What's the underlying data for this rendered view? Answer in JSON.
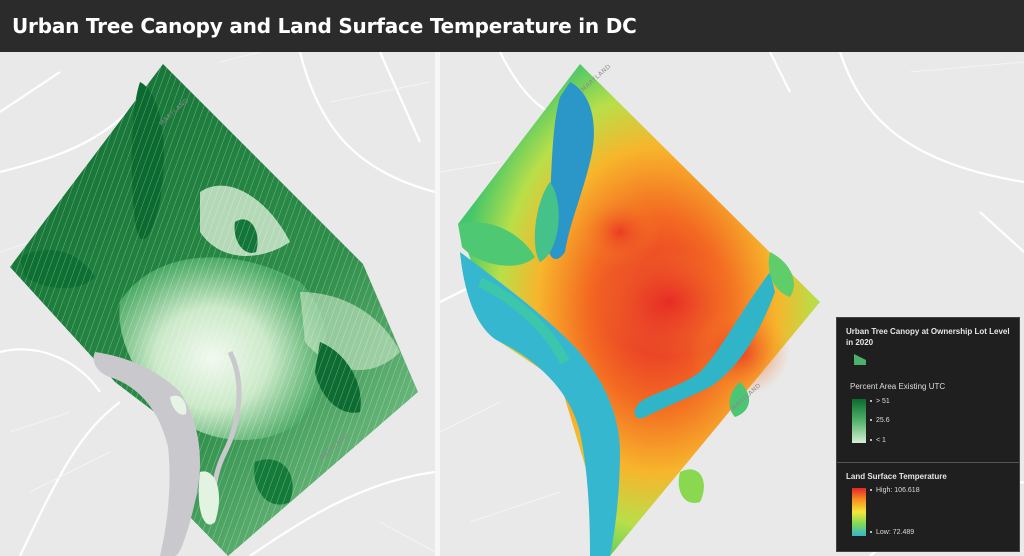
{
  "header": {
    "title": "Urban Tree Canopy and Land Surface Temperature in DC"
  },
  "left_map": {
    "basemap_labels": [
      "MARYLAND",
      "MARYLAND"
    ]
  },
  "right_map": {
    "basemap_labels": [
      "MARYLAND",
      "MARYLAND"
    ]
  },
  "legend": {
    "canopy": {
      "title": "Urban Tree Canopy at Ownership Lot Level in 2020",
      "swatch_color": "#4caf6a",
      "subtitle": "Percent Area Existing UTC",
      "ticks": [
        "> 51",
        "25.6",
        "< 1"
      ],
      "ramp": [
        "#0b6b2f",
        "#53b36a",
        "#d5efd5"
      ]
    },
    "lst": {
      "title": "Land Surface Temperature",
      "high_label": "High: 106.618",
      "low_label": "Low: 72.489",
      "ramp": [
        "#e3242b",
        "#f7931e",
        "#f4e73c",
        "#7ed957",
        "#33b6d0"
      ]
    }
  },
  "colors": {
    "header_bg": "#2b2b2b",
    "basemap": "#e9e9ea",
    "river": "#c9c9cd",
    "canopy_dark": "#0e6f33",
    "canopy_light": "#e3f3e1"
  }
}
